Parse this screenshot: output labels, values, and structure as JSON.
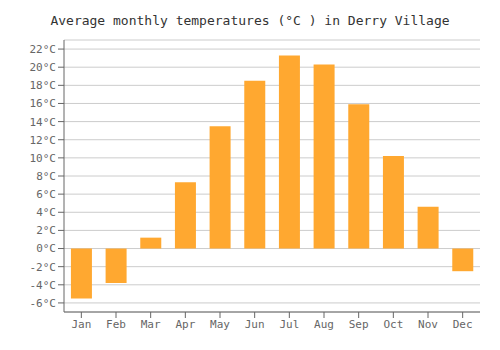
{
  "chart_data": {
    "type": "bar",
    "title": "Average monthly temperatures (°C ) in Derry Village",
    "categories": [
      "Jan",
      "Feb",
      "Mar",
      "Apr",
      "May",
      "Jun",
      "Jul",
      "Aug",
      "Sep",
      "Oct",
      "Nov",
      "Dec"
    ],
    "values": [
      -5.5,
      -3.8,
      1.2,
      7.3,
      13.5,
      18.5,
      21.3,
      20.3,
      15.9,
      10.2,
      4.6,
      -2.5
    ],
    "color": "#FFA830",
    "ylim": [
      -7,
      23
    ],
    "yticks": [
      {
        "value": -6,
        "label": "-6°C"
      },
      {
        "value": -4,
        "label": "-4°C"
      },
      {
        "value": -2,
        "label": "-2°C"
      },
      {
        "value": 0,
        "label": "0°C"
      },
      {
        "value": 2,
        "label": "2°C"
      },
      {
        "value": 4,
        "label": "4°C"
      },
      {
        "value": 6,
        "label": "6°C"
      },
      {
        "value": 8,
        "label": "8°C"
      },
      {
        "value": 10,
        "label": "10°C"
      },
      {
        "value": 12,
        "label": "12°C"
      },
      {
        "value": 14,
        "label": "14°C"
      },
      {
        "value": 16,
        "label": "16°C"
      },
      {
        "value": 18,
        "label": "18°C"
      },
      {
        "value": 20,
        "label": "20°C"
      },
      {
        "value": 22,
        "label": "22°C"
      }
    ],
    "grid": true
  }
}
